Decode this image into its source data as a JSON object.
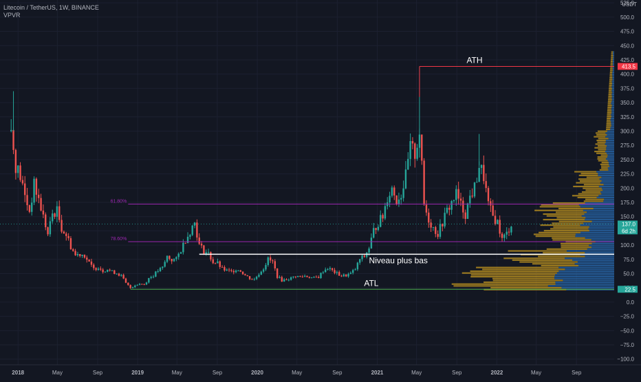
{
  "header": {
    "title": "Litecoin / TetherUS, 1W, BINANCE",
    "indicator": "VPVR",
    "currency": "USDT"
  },
  "colors": {
    "background": "#131722",
    "up": "#26a69a",
    "down": "#ef5350",
    "axis_text": "#b2b5be",
    "fib": "#9c27b0",
    "ath_line": "#f23645",
    "atl_line": "#4caf50",
    "level_line": "#ffffff",
    "vp_up": "#2a6db5",
    "vp_down": "#c79a1f"
  },
  "chart_data": {
    "type": "candlestick",
    "title": "Litecoin / TetherUS, 1W, BINANCE",
    "ylim": [
      -110,
      530
    ],
    "y_ticks": [
      525,
      500,
      475,
      450,
      425,
      400,
      375,
      350,
      325,
      300,
      275,
      250,
      225,
      200,
      175,
      150,
      125,
      100,
      75,
      50,
      25,
      0,
      -25,
      -50,
      -75,
      -100
    ],
    "y_tick_labels": [
      "525.0",
      "500.0",
      "475.0",
      "450.0",
      "425.0",
      "400.0",
      "375.0",
      "350.0",
      "325.0",
      "300.0",
      "275.0",
      "250.0",
      "225.0",
      "200.0",
      "175.0",
      "150.0",
      "125.0",
      "100.0",
      "75.0",
      "50.0",
      "25.0",
      "0.0",
      "−25.0",
      "−50.0",
      "−75.0",
      "−100.0"
    ],
    "x_ticks": [
      {
        "label": "2018",
        "date": "2018-01-01"
      },
      {
        "label": "May",
        "date": "2018-05-01"
      },
      {
        "label": "Sep",
        "date": "2018-09-01"
      },
      {
        "label": "2019",
        "date": "2019-01-01"
      },
      {
        "label": "May",
        "date": "2019-05-01"
      },
      {
        "label": "Sep",
        "date": "2019-09-01"
      },
      {
        "label": "2020",
        "date": "2020-01-01"
      },
      {
        "label": "May",
        "date": "2020-05-01"
      },
      {
        "label": "Sep",
        "date": "2020-09-01"
      },
      {
        "label": "2021",
        "date": "2021-01-01"
      },
      {
        "label": "May",
        "date": "2021-05-01"
      },
      {
        "label": "Sep",
        "date": "2021-09-01"
      },
      {
        "label": "2022",
        "date": "2022-01-01"
      },
      {
        "label": "May",
        "date": "2022-05-01"
      },
      {
        "label": "Sep",
        "date": "2022-09-01"
      }
    ],
    "series_points": [
      [
        "2017-12-11",
        300
      ],
      [
        "2017-12-25",
        240
      ],
      [
        "2018-01-08",
        220
      ],
      [
        "2018-01-22",
        185
      ],
      [
        "2018-02-05",
        160
      ],
      [
        "2018-02-19",
        205
      ],
      [
        "2018-03-05",
        180
      ],
      [
        "2018-03-19",
        150
      ],
      [
        "2018-04-02",
        118
      ],
      [
        "2018-04-16",
        155
      ],
      [
        "2018-04-30",
        160
      ],
      [
        "2018-05-14",
        130
      ],
      [
        "2018-05-28",
        118
      ],
      [
        "2018-06-11",
        98
      ],
      [
        "2018-06-25",
        82
      ],
      [
        "2018-07-09",
        85
      ],
      [
        "2018-07-23",
        82
      ],
      [
        "2018-08-06",
        68
      ],
      [
        "2018-08-20",
        58
      ],
      [
        "2018-09-03",
        62
      ],
      [
        "2018-09-17",
        55
      ],
      [
        "2018-10-01",
        58
      ],
      [
        "2018-10-15",
        53
      ],
      [
        "2018-10-29",
        51
      ],
      [
        "2018-11-12",
        46
      ],
      [
        "2018-11-26",
        33
      ],
      [
        "2018-12-10",
        25
      ],
      [
        "2018-12-24",
        30
      ],
      [
        "2019-01-07",
        32
      ],
      [
        "2019-01-21",
        31
      ],
      [
        "2019-02-04",
        42
      ],
      [
        "2019-02-18",
        47
      ],
      [
        "2019-03-04",
        55
      ],
      [
        "2019-03-18",
        60
      ],
      [
        "2019-04-01",
        80
      ],
      [
        "2019-04-15",
        74
      ],
      [
        "2019-04-29",
        75
      ],
      [
        "2019-05-13",
        92
      ],
      [
        "2019-05-27",
        110
      ],
      [
        "2019-06-10",
        125
      ],
      [
        "2019-06-24",
        140
      ],
      [
        "2019-07-08",
        100
      ],
      [
        "2019-07-22",
        90
      ],
      [
        "2019-08-05",
        85
      ],
      [
        "2019-08-19",
        70
      ],
      [
        "2019-09-02",
        68
      ],
      [
        "2019-09-16",
        58
      ],
      [
        "2019-09-30",
        55
      ],
      [
        "2019-10-14",
        53
      ],
      [
        "2019-10-28",
        58
      ],
      [
        "2019-11-11",
        55
      ],
      [
        "2019-11-25",
        47
      ],
      [
        "2019-12-09",
        42
      ],
      [
        "2019-12-23",
        40
      ],
      [
        "2020-01-06",
        50
      ],
      [
        "2020-01-20",
        60
      ],
      [
        "2020-02-03",
        75
      ],
      [
        "2020-02-17",
        70
      ],
      [
        "2020-03-02",
        45
      ],
      [
        "2020-03-16",
        38
      ],
      [
        "2020-03-30",
        40
      ],
      [
        "2020-04-13",
        42
      ],
      [
        "2020-04-27",
        46
      ],
      [
        "2020-05-11",
        44
      ],
      [
        "2020-05-25",
        46
      ],
      [
        "2020-06-08",
        44
      ],
      [
        "2020-06-22",
        42
      ],
      [
        "2020-07-06",
        44
      ],
      [
        "2020-07-20",
        55
      ],
      [
        "2020-08-03",
        60
      ],
      [
        "2020-08-17",
        55
      ],
      [
        "2020-08-31",
        50
      ],
      [
        "2020-09-14",
        46
      ],
      [
        "2020-09-28",
        47
      ],
      [
        "2020-10-12",
        50
      ],
      [
        "2020-10-26",
        58
      ],
      [
        "2020-11-09",
        75
      ],
      [
        "2020-11-23",
        80
      ],
      [
        "2020-12-07",
        95
      ],
      [
        "2020-12-21",
        125
      ],
      [
        "2021-01-04",
        140
      ],
      [
        "2021-01-18",
        150
      ],
      [
        "2021-02-01",
        185
      ],
      [
        "2021-02-15",
        200
      ],
      [
        "2021-03-01",
        180
      ],
      [
        "2021-03-15",
        190
      ],
      [
        "2021-03-29",
        220
      ],
      [
        "2021-04-12",
        270
      ],
      [
        "2021-04-26",
        260
      ],
      [
        "2021-05-10",
        300
      ],
      [
        "2021-05-24",
        170
      ],
      [
        "2021-06-07",
        145
      ],
      [
        "2021-06-21",
        130
      ],
      [
        "2021-07-05",
        120
      ],
      [
        "2021-07-19",
        140
      ],
      [
        "2021-08-02",
        160
      ],
      [
        "2021-08-16",
        175
      ],
      [
        "2021-08-30",
        190
      ],
      [
        "2021-09-13",
        170
      ],
      [
        "2021-09-27",
        155
      ],
      [
        "2021-10-11",
        185
      ],
      [
        "2021-10-25",
        200
      ],
      [
        "2021-11-08",
        240
      ],
      [
        "2021-11-22",
        220
      ],
      [
        "2021-12-06",
        170
      ],
      [
        "2021-12-20",
        150
      ],
      [
        "2022-01-03",
        140
      ],
      [
        "2022-01-17",
        110
      ],
      [
        "2022-01-31",
        120
      ],
      [
        "2022-02-14",
        137
      ]
    ],
    "price_labels": [
      {
        "value": 413.5,
        "label": "413.5",
        "kind": "ath"
      },
      {
        "value": 137.0,
        "label": "137.0",
        "sub": "6d 2h",
        "kind": "last"
      },
      {
        "value": 22.5,
        "label": "22.5",
        "kind": "atl"
      }
    ],
    "horizontal_levels": [
      {
        "value": 413.5,
        "label": "ATH",
        "start": "2021-05-10"
      },
      {
        "value": 172,
        "label": "61.80%",
        "start": "2018-12-03"
      },
      {
        "value": 106,
        "label": "78.60%",
        "start": "2018-12-03"
      },
      {
        "value": 84,
        "label": "Niveau plus bas",
        "start": "2019-07-08"
      },
      {
        "value": 22.5,
        "label": "ATL",
        "start": "2018-12-10"
      }
    ],
    "volume_profile_range": [
      20,
      440
    ]
  }
}
